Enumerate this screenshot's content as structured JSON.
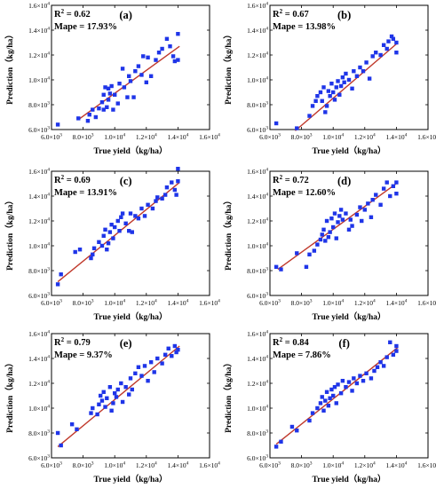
{
  "chart_data": [
    {
      "panel": "(a)",
      "type": "scatter",
      "r2_label": "R",
      "r2_sup": "2",
      "r2_text": " = 0.62",
      "mape_text": "Mape = 17.93%",
      "xlabel": "True yield（kg/ha）",
      "ylabel": "Prediction（kg/ha）",
      "xlim": [
        6000,
        16000
      ],
      "ylim": [
        6000,
        16000
      ],
      "x_ticks": [
        6000,
        8000,
        10000,
        12000,
        14000,
        16000
      ],
      "y_ticks": [
        6000,
        8000,
        10000,
        12000,
        14000,
        16000
      ],
      "tick_mantissa": [
        "6.0",
        "8.0",
        "1.0",
        "1.2",
        "1.4",
        "1.6"
      ],
      "tick_exponent": [
        "3",
        "3",
        "4",
        "4",
        "4",
        "4"
      ],
      "tick_base": "×10",
      "fit_line": {
        "x": [
          7700,
          14100
        ],
        "y": [
          6800,
          12700
        ]
      },
      "point_color": "#1f35e8",
      "line_color": "#c0392b",
      "points": [
        [
          6400,
          6400
        ],
        [
          7700,
          6900
        ],
        [
          8300,
          6700
        ],
        [
          8400,
          7200
        ],
        [
          8600,
          7600
        ],
        [
          8800,
          7000
        ],
        [
          9000,
          7700
        ],
        [
          9200,
          8200
        ],
        [
          9300,
          7600
        ],
        [
          9300,
          8800
        ],
        [
          9400,
          9400
        ],
        [
          9500,
          7800
        ],
        [
          9600,
          8400
        ],
        [
          9600,
          9300
        ],
        [
          9700,
          8900
        ],
        [
          9800,
          9500
        ],
        [
          9900,
          7600
        ],
        [
          10000,
          8800
        ],
        [
          10200,
          8100
        ],
        [
          10300,
          9700
        ],
        [
          10500,
          10900
        ],
        [
          10600,
          9400
        ],
        [
          10800,
          8600
        ],
        [
          10900,
          10300
        ],
        [
          11000,
          9900
        ],
        [
          11200,
          8600
        ],
        [
          11300,
          10700
        ],
        [
          11500,
          11100
        ],
        [
          11700,
          10400
        ],
        [
          11800,
          11900
        ],
        [
          12000,
          9800
        ],
        [
          12100,
          11800
        ],
        [
          12300,
          10300
        ],
        [
          12600,
          11600
        ],
        [
          12800,
          12200
        ],
        [
          13000,
          12500
        ],
        [
          13300,
          13300
        ],
        [
          13500,
          12700
        ],
        [
          13700,
          11900
        ],
        [
          13800,
          11500
        ],
        [
          14000,
          13700
        ],
        [
          14000,
          11600
        ]
      ]
    },
    {
      "panel": "(b)",
      "type": "scatter",
      "r2_label": "R",
      "r2_sup": "2",
      "r2_text": " = 0.67",
      "mape_text": "Mape = 13.98%",
      "xlabel": "True yield（kg/ha）",
      "ylabel": "Prediction（kg/ha）",
      "xlim": [
        6000,
        16000
      ],
      "ylim": [
        6000,
        16000
      ],
      "x_ticks": [
        6000,
        8000,
        10000,
        12000,
        14000,
        16000
      ],
      "y_ticks": [
        6000,
        8000,
        10000,
        12000,
        14000,
        16000
      ],
      "tick_mantissa": [
        "6.0",
        "8.0",
        "1.0",
        "1.2",
        "1.4",
        "1.6"
      ],
      "tick_exponent": [
        "3",
        "3",
        "4",
        "4",
        "4",
        "4"
      ],
      "tick_base": "×10",
      "fit_line": {
        "x": [
          7600,
          14100
        ],
        "y": [
          5900,
          13000
        ]
      },
      "point_color": "#1f35e8",
      "line_color": "#c0392b",
      "points": [
        [
          6400,
          6500
        ],
        [
          7700,
          6100
        ],
        [
          8500,
          7100
        ],
        [
          8700,
          7900
        ],
        [
          8900,
          8300
        ],
        [
          9000,
          8700
        ],
        [
          9200,
          9000
        ],
        [
          9300,
          8300
        ],
        [
          9400,
          9400
        ],
        [
          9500,
          7400
        ],
        [
          9600,
          7900
        ],
        [
          9700,
          9100
        ],
        [
          9800,
          8700
        ],
        [
          9900,
          9700
        ],
        [
          10000,
          9000
        ],
        [
          10100,
          8400
        ],
        [
          10200,
          9400
        ],
        [
          10300,
          9900
        ],
        [
          10400,
          8800
        ],
        [
          10500,
          9500
        ],
        [
          10600,
          10200
        ],
        [
          10700,
          9800
        ],
        [
          10800,
          10500
        ],
        [
          11000,
          10000
        ],
        [
          11200,
          9300
        ],
        [
          11300,
          10700
        ],
        [
          11500,
          10300
        ],
        [
          11700,
          11000
        ],
        [
          11900,
          10700
        ],
        [
          12100,
          11400
        ],
        [
          12300,
          10100
        ],
        [
          12500,
          11900
        ],
        [
          12700,
          12200
        ],
        [
          13000,
          12000
        ],
        [
          13200,
          12800
        ],
        [
          13400,
          12500
        ],
        [
          13500,
          13100
        ],
        [
          13700,
          13500
        ],
        [
          13800,
          13300
        ],
        [
          14000,
          13000
        ],
        [
          14000,
          12200
        ]
      ]
    },
    {
      "panel": "(c)",
      "type": "scatter",
      "r2_label": "R",
      "r2_sup": "2",
      "r2_text": " = 0.69",
      "mape_text": "Mape = 13.91%",
      "xlabel": "True yield（kg/ha）",
      "ylabel": "Prediction（kg/ha）",
      "xlim": [
        6000,
        16000
      ],
      "ylim": [
        6000,
        16000
      ],
      "x_ticks": [
        6000,
        8000,
        10000,
        12000,
        14000,
        16000
      ],
      "y_ticks": [
        6000,
        8000,
        10000,
        12000,
        14000,
        16000
      ],
      "tick_mantissa": [
        "6.0",
        "8.0",
        "1.0",
        "1.2",
        "1.4",
        "1.6"
      ],
      "tick_exponent": [
        "3",
        "3",
        "4",
        "4",
        "4",
        "4"
      ],
      "tick_base": "×10",
      "fit_line": {
        "x": [
          6400,
          14100
        ],
        "y": [
          7100,
          15100
        ]
      },
      "point_color": "#1f35e8",
      "line_color": "#c0392b",
      "points": [
        [
          6400,
          6900
        ],
        [
          6600,
          7700
        ],
        [
          7500,
          9500
        ],
        [
          7800,
          9700
        ],
        [
          8500,
          9000
        ],
        [
          8600,
          9300
        ],
        [
          8700,
          9800
        ],
        [
          9000,
          10300
        ],
        [
          9200,
          10000
        ],
        [
          9300,
          10800
        ],
        [
          9400,
          11300
        ],
        [
          9500,
          9700
        ],
        [
          9600,
          10200
        ],
        [
          9700,
          11100
        ],
        [
          9800,
          11700
        ],
        [
          9900,
          10600
        ],
        [
          10000,
          11500
        ],
        [
          10200,
          12000
        ],
        [
          10300,
          11200
        ],
        [
          10400,
          12300
        ],
        [
          10500,
          12600
        ],
        [
          10700,
          11800
        ],
        [
          10900,
          11200
        ],
        [
          11000,
          12600
        ],
        [
          11100,
          11100
        ],
        [
          11300,
          12400
        ],
        [
          11500,
          12200
        ],
        [
          11700,
          13000
        ],
        [
          11900,
          12400
        ],
        [
          12100,
          13300
        ],
        [
          12400,
          13000
        ],
        [
          12600,
          13600
        ],
        [
          12700,
          13900
        ],
        [
          13000,
          13800
        ],
        [
          13200,
          14100
        ],
        [
          13300,
          14700
        ],
        [
          13600,
          15100
        ],
        [
          13800,
          14500
        ],
        [
          13900,
          14100
        ],
        [
          14000,
          15200
        ],
        [
          14000,
          16200
        ]
      ]
    },
    {
      "panel": "(d)",
      "type": "scatter",
      "r2_label": "R",
      "r2_sup": "2",
      "r2_text": " = 0.72",
      "mape_text": "Mape = 12.60%",
      "xlabel": "True yield（kg/ha）",
      "ylabel": "Prediction（kg/ha）",
      "xlim": [
        6000,
        16000
      ],
      "ylim": [
        6000,
        16000
      ],
      "x_ticks": [
        6000,
        8000,
        10000,
        12000,
        14000,
        16000
      ],
      "y_ticks": [
        6000,
        8000,
        10000,
        12000,
        14000,
        16000
      ],
      "tick_mantissa": [
        "6.0",
        "8.0",
        "1.0",
        "1.2",
        "1.4",
        "1.6"
      ],
      "tick_exponent": [
        "3",
        "3",
        "4",
        "4",
        "4",
        "4"
      ],
      "tick_base": "×10",
      "fit_line": {
        "x": [
          6500,
          14100
        ],
        "y": [
          8100,
          15100
        ]
      },
      "point_color": "#1f35e8",
      "line_color": "#c0392b",
      "points": [
        [
          6400,
          8300
        ],
        [
          6700,
          8100
        ],
        [
          7700,
          9400
        ],
        [
          8300,
          8300
        ],
        [
          8500,
          9300
        ],
        [
          8800,
          9600
        ],
        [
          9000,
          10100
        ],
        [
          9200,
          10500
        ],
        [
          9300,
          10900
        ],
        [
          9400,
          11300
        ],
        [
          9500,
          10400
        ],
        [
          9600,
          12000
        ],
        [
          9700,
          10700
        ],
        [
          9800,
          11100
        ],
        [
          9900,
          12200
        ],
        [
          10000,
          11500
        ],
        [
          10100,
          12600
        ],
        [
          10200,
          10600
        ],
        [
          10300,
          11900
        ],
        [
          10400,
          12400
        ],
        [
          10500,
          12900
        ],
        [
          10600,
          12100
        ],
        [
          10800,
          12600
        ],
        [
          11000,
          11300
        ],
        [
          11100,
          12100
        ],
        [
          11200,
          11600
        ],
        [
          11500,
          12500
        ],
        [
          11700,
          13100
        ],
        [
          11800,
          12000
        ],
        [
          12000,
          12900
        ],
        [
          12200,
          13400
        ],
        [
          12400,
          12300
        ],
        [
          12500,
          13700
        ],
        [
          12700,
          14100
        ],
        [
          13000,
          13300
        ],
        [
          13200,
          14600
        ],
        [
          13400,
          15100
        ],
        [
          13600,
          14000
        ],
        [
          13800,
          14800
        ],
        [
          14000,
          15100
        ],
        [
          14000,
          14200
        ]
      ]
    },
    {
      "panel": "(e)",
      "type": "scatter",
      "r2_label": "R",
      "r2_sup": "2",
      "r2_text": " = 0.79",
      "mape_text": "Mape = 9.37%",
      "xlabel": "True yield（kg/ha）",
      "ylabel": "Prediction（kg/ha）",
      "xlim": [
        6000,
        16000
      ],
      "ylim": [
        6000,
        16000
      ],
      "x_ticks": [
        6000,
        8000,
        10000,
        12000,
        14000,
        16000
      ],
      "y_ticks": [
        6000,
        8000,
        10000,
        12000,
        14000,
        16000
      ],
      "tick_mantissa": [
        "6.0",
        "8.0",
        "1.0",
        "1.2",
        "1.4",
        "1.6"
      ],
      "tick_exponent": [
        "3",
        "3",
        "4",
        "4",
        "4",
        "4"
      ],
      "tick_base": "×10",
      "fit_line": {
        "x": [
          6400,
          14100
        ],
        "y": [
          6900,
          15000
        ]
      },
      "point_color": "#1f35e8",
      "line_color": "#c0392b",
      "points": [
        [
          6400,
          8000
        ],
        [
          6600,
          7000
        ],
        [
          7300,
          8700
        ],
        [
          7600,
          8300
        ],
        [
          8500,
          9600
        ],
        [
          8600,
          10000
        ],
        [
          8900,
          9500
        ],
        [
          9000,
          10300
        ],
        [
          9100,
          11000
        ],
        [
          9200,
          10600
        ],
        [
          9300,
          11300
        ],
        [
          9400,
          10100
        ],
        [
          9500,
          10800
        ],
        [
          9700,
          11700
        ],
        [
          9800,
          9800
        ],
        [
          9900,
          10400
        ],
        [
          10000,
          11200
        ],
        [
          10100,
          10900
        ],
        [
          10200,
          11500
        ],
        [
          10400,
          12000
        ],
        [
          10500,
          10500
        ],
        [
          10700,
          11700
        ],
        [
          10900,
          11100
        ],
        [
          11000,
          12400
        ],
        [
          11100,
          11500
        ],
        [
          11300,
          12800
        ],
        [
          11500,
          13300
        ],
        [
          11700,
          12600
        ],
        [
          11900,
          13400
        ],
        [
          12100,
          12200
        ],
        [
          12300,
          13700
        ],
        [
          12500,
          12900
        ],
        [
          12700,
          14000
        ],
        [
          13000,
          13600
        ],
        [
          13200,
          14300
        ],
        [
          13400,
          14800
        ],
        [
          13600,
          14200
        ],
        [
          13800,
          15000
        ],
        [
          13900,
          14500
        ],
        [
          14000,
          14700
        ]
      ]
    },
    {
      "panel": "(f)",
      "type": "scatter",
      "r2_label": "R",
      "r2_sup": "2",
      "r2_text": " = 0.84",
      "mape_text": "Mape = 7.86%",
      "xlabel": "True yield（kg/ha）",
      "ylabel": "Prediction（kg/ha）",
      "xlim": [
        6000,
        16000
      ],
      "ylim": [
        6000,
        16000
      ],
      "x_ticks": [
        6000,
        8000,
        10000,
        12000,
        14000,
        16000
      ],
      "y_ticks": [
        6000,
        8000,
        10000,
        12000,
        14000,
        16000
      ],
      "tick_mantissa": [
        "6.0",
        "8.0",
        "1.0",
        "1.2",
        "1.4",
        "1.6"
      ],
      "tick_exponent": [
        "3",
        "3",
        "4",
        "4",
        "4",
        "4"
      ],
      "tick_base": "×10",
      "fit_line": {
        "x": [
          6400,
          14100
        ],
        "y": [
          7100,
          14900
        ]
      },
      "point_color": "#1f35e8",
      "line_color": "#c0392b",
      "points": [
        [
          6400,
          6900
        ],
        [
          6700,
          7300
        ],
        [
          7400,
          8500
        ],
        [
          7700,
          8200
        ],
        [
          8500,
          9000
        ],
        [
          8700,
          9600
        ],
        [
          9000,
          10000
        ],
        [
          9200,
          10400
        ],
        [
          9300,
          10900
        ],
        [
          9400,
          9800
        ],
        [
          9500,
          10600
        ],
        [
          9600,
          11300
        ],
        [
          9700,
          10200
        ],
        [
          9800,
          10800
        ],
        [
          9900,
          11500
        ],
        [
          10000,
          11000
        ],
        [
          10100,
          11700
        ],
        [
          10200,
          10400
        ],
        [
          10300,
          11900
        ],
        [
          10500,
          11200
        ],
        [
          10600,
          12200
        ],
        [
          10800,
          11700
        ],
        [
          11000,
          12100
        ],
        [
          11200,
          11400
        ],
        [
          11300,
          12400
        ],
        [
          11500,
          12000
        ],
        [
          11700,
          12600
        ],
        [
          11900,
          12200
        ],
        [
          12100,
          12800
        ],
        [
          12400,
          12400
        ],
        [
          12600,
          13000
        ],
        [
          12800,
          13300
        ],
        [
          13000,
          13700
        ],
        [
          13200,
          13400
        ],
        [
          13400,
          14100
        ],
        [
          13600,
          15300
        ],
        [
          13800,
          14300
        ],
        [
          14000,
          15000
        ],
        [
          14000,
          14600
        ]
      ]
    }
  ]
}
